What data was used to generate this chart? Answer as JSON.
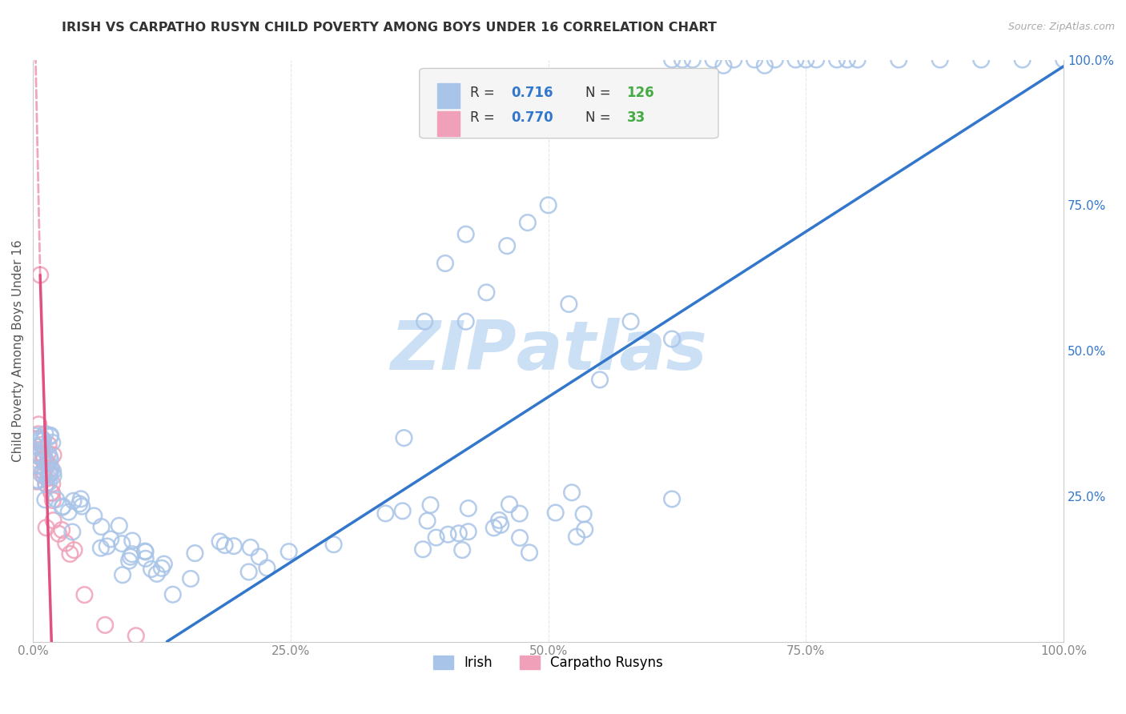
{
  "title": "IRISH VS CARPATHO RUSYN CHILD POVERTY AMONG BOYS UNDER 16 CORRELATION CHART",
  "source": "Source: ZipAtlas.com",
  "ylabel": "Child Poverty Among Boys Under 16",
  "xlim": [
    0.0,
    1.0
  ],
  "ylim": [
    0.0,
    1.0
  ],
  "xtick_positions": [
    0.0,
    0.25,
    0.5,
    0.75,
    1.0
  ],
  "xtick_labels": [
    "0.0%",
    "25.0%",
    "50.0%",
    "75.0%",
    "100.0%"
  ],
  "ytick_positions": [
    0.25,
    0.5,
    0.75,
    1.0
  ],
  "ytick_labels": [
    "25.0%",
    "50.0%",
    "75.0%",
    "100.0%"
  ],
  "irish_R": "0.716",
  "irish_N": "126",
  "carpatho_R": "0.770",
  "carpatho_N": "33",
  "irish_scatter_color": "#a8c4e8",
  "carpatho_scatter_color": "#f0a0b8",
  "irish_line_color": "#3377cc",
  "carpatho_line_color": "#e05080",
  "R_N_label_color": "#333333",
  "R_value_color": "#3377cc",
  "N_value_color": "#44aa44",
  "watermark_color": "#ddeeff",
  "bg_color": "#ffffff",
  "grid_color": "#e0e8f0",
  "title_color": "#333333",
  "ytick_color": "#3377cc",
  "xtick_color": "#888888",
  "legend_box_color": "#f5f5f5",
  "legend_edge_color": "#cccccc"
}
